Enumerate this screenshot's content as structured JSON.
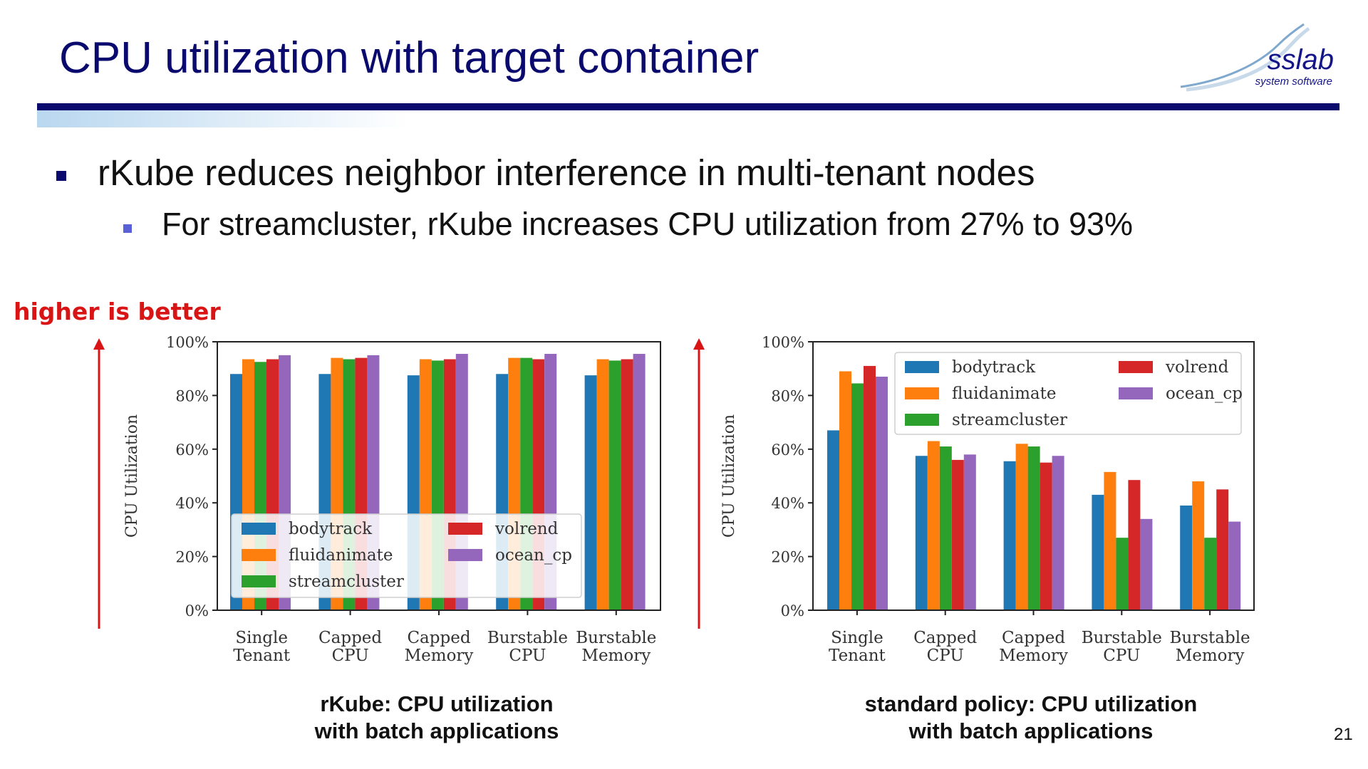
{
  "slide": {
    "title": "CPU utilization with target container",
    "bullet_main": "rKube reduces neighbor interference in multi-tenant nodes",
    "bullet_sub": "For streamcluster, rKube increases CPU utilization from 27% to 93%",
    "annotation": "higher is better",
    "page_number": "21"
  },
  "logo": {
    "name": "sslab",
    "subtitle": "system software"
  },
  "captions": {
    "left": [
      "rKube: CPU utilization",
      "with batch applications"
    ],
    "right": [
      "standard policy: CPU utilization",
      "with batch applications"
    ]
  },
  "colors": {
    "title": "#0a0a6e",
    "annotation": "#d91414",
    "bodytrack": "#1f77b4",
    "fluidanimate": "#ff7f0e",
    "streamcluster": "#2ca02c",
    "volrend": "#d62728",
    "ocean_cp": "#9467bd"
  },
  "chart_data": [
    {
      "type": "bar",
      "title": "",
      "xlabel": "",
      "ylabel": "CPU Utilization",
      "ylim": [
        0,
        100
      ],
      "yticks": [
        "0%",
        "20%",
        "40%",
        "60%",
        "80%",
        "100%"
      ],
      "categories": [
        [
          "Single",
          "Tenant"
        ],
        [
          "Capped",
          "CPU"
        ],
        [
          "Capped",
          "Memory"
        ],
        [
          "Burstable",
          "CPU"
        ],
        [
          "Burstable",
          "Memory"
        ]
      ],
      "legend_position": "lower-left",
      "series": [
        {
          "name": "bodytrack",
          "color": "#1f77b4",
          "values": [
            88,
            88,
            87.5,
            88,
            87.5
          ]
        },
        {
          "name": "fluidanimate",
          "color": "#ff7f0e",
          "values": [
            93.5,
            94,
            93.5,
            94,
            93.5
          ]
        },
        {
          "name": "streamcluster",
          "color": "#2ca02c",
          "values": [
            92.5,
            93.5,
            93,
            94,
            93
          ]
        },
        {
          "name": "volrend",
          "color": "#d62728",
          "values": [
            93.5,
            94,
            93.5,
            93.5,
            93.5
          ]
        },
        {
          "name": "ocean_cp",
          "color": "#9467bd",
          "values": [
            95,
            95,
            95.5,
            95.5,
            95.5
          ]
        }
      ]
    },
    {
      "type": "bar",
      "title": "",
      "xlabel": "",
      "ylabel": "CPU Utilization",
      "ylim": [
        0,
        100
      ],
      "yticks": [
        "0%",
        "20%",
        "40%",
        "60%",
        "80%",
        "100%"
      ],
      "categories": [
        [
          "Single",
          "Tenant"
        ],
        [
          "Capped",
          "CPU"
        ],
        [
          "Capped",
          "Memory"
        ],
        [
          "Burstable",
          "CPU"
        ],
        [
          "Burstable",
          "Memory"
        ]
      ],
      "legend_position": "upper-right",
      "series": [
        {
          "name": "bodytrack",
          "color": "#1f77b4",
          "values": [
            67,
            57.5,
            55.5,
            43,
            39
          ]
        },
        {
          "name": "fluidanimate",
          "color": "#ff7f0e",
          "values": [
            89,
            63,
            62,
            51.5,
            48
          ]
        },
        {
          "name": "streamcluster",
          "color": "#2ca02c",
          "values": [
            84.5,
            61,
            61,
            27,
            27
          ]
        },
        {
          "name": "volrend",
          "color": "#d62728",
          "values": [
            91,
            56,
            55,
            48.5,
            45
          ]
        },
        {
          "name": "ocean_cp",
          "color": "#9467bd",
          "values": [
            87,
            58,
            57.5,
            34,
            33
          ]
        }
      ]
    }
  ]
}
